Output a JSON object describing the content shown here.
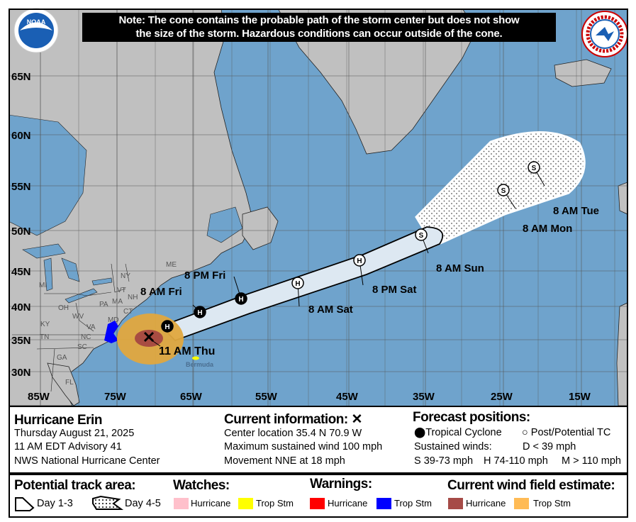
{
  "note": {
    "line1": "Note: The cone contains the probable path of the storm center but does not show",
    "line2": "the size of the storm. Hazardous conditions can occur outside of the cone."
  },
  "logos": {
    "left": "NOAA",
    "right": "NATIONAL WEATHER SERVICE"
  },
  "map": {
    "lat_labels": [
      "65N",
      "60N",
      "55N",
      "50N",
      "45N",
      "40N",
      "35N",
      "30N"
    ],
    "lon_labels": [
      "85W",
      "75W",
      "65W",
      "55W",
      "45W",
      "35W",
      "25W",
      "15W"
    ],
    "state_labels": [
      "ME",
      "NY",
      "VT",
      "NH",
      "MA",
      "CT",
      "MI",
      "PA",
      "OH",
      "MD",
      "WV",
      "VA",
      "KY",
      "TN",
      "NC",
      "SC",
      "GA",
      "FL"
    ],
    "place_labels": {
      "bermuda": "Bermuda"
    },
    "current_marker": "x-icon",
    "forecast_points": [
      {
        "time": "",
        "type": "H",
        "stage": "tropical"
      },
      {
        "time": "8 AM Fri",
        "type": "H",
        "stage": "tropical"
      },
      {
        "time": "8 PM Fri",
        "type": "H",
        "stage": "tropical"
      },
      {
        "time": "8 AM Sat",
        "type": "H",
        "stage": "post"
      },
      {
        "time": "8 PM Sat",
        "type": "H",
        "stage": "post"
      },
      {
        "time": "8 AM Sun",
        "type": "S",
        "stage": "post"
      },
      {
        "time": "8 AM Mon",
        "type": "S",
        "stage": "post"
      },
      {
        "time": "8 AM Tue",
        "type": "S",
        "stage": "post"
      }
    ],
    "current_label": "11 AM Thu",
    "colors": {
      "ocean": "#6fa3cc",
      "land": "#c0c0c0",
      "cone": "#dde8f2",
      "ts_wind": "#f2b34a",
      "hu_wind": "#a64b47",
      "ts_warning": "#0000ff",
      "ts_watch": "#ffff00"
    }
  },
  "info": {
    "storm_name": "Hurricane Erin",
    "date": "Thursday August 21, 2025",
    "advisory": "11 AM EDT Advisory 41",
    "center": "NWS National Hurricane Center",
    "current_title": "Current information:",
    "current_icon": "x-icon",
    "location": "Center location 35.4 N 70.9 W",
    "wind": "Maximum sustained wind 100 mph",
    "movement": "Movement NNE at 18 mph",
    "forecast_title": "Forecast positions:",
    "tc_label": "Tropical Cyclone",
    "post_label": "Post/Potential TC",
    "sustained": "Sustained winds:",
    "d_def": "D < 39 mph",
    "s_def": "S 39-73 mph",
    "h_def": "H 74-110 mph",
    "m_def": "M > 110 mph"
  },
  "legend": {
    "track_title": "Potential track area:",
    "day13": "Day 1-3",
    "day45": "Day 4-5",
    "watches_title": "Watches:",
    "warnings_title": "Warnings:",
    "wind_title": "Current wind field estimate:",
    "hurricane": "Hurricane",
    "tropstm": "Trop Stm",
    "colors": {
      "hu_watch": "#ffc0cb",
      "ts_watch": "#ffff00",
      "hu_warning": "#ff0000",
      "ts_warning": "#0000ff",
      "hu_wind": "#a64b47",
      "ts_wind": "#ffbb55"
    }
  }
}
